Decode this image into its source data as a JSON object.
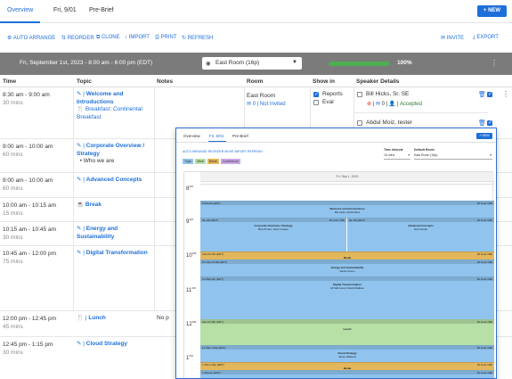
{
  "tabs": [
    "Overview",
    "Fri, 9/01",
    "Pre-Brief"
  ],
  "new_button": "+ NEW",
  "toolbar": {
    "auto_arrange": "AUTO ARRANGE",
    "reorder": "REORDER",
    "clone": "CLONE",
    "import": "IMPORT",
    "print": "PRINT",
    "refresh": "REFRESH",
    "invite": "INVITE",
    "export": "EXPORT"
  },
  "day_bar": {
    "title": "Fri, September 1st, 2023  -  8:00 am - 6:00 pm (EDT)",
    "room": "East Room (16p)",
    "progress_percent": 100,
    "progress_label": "100%"
  },
  "columns": [
    "Time",
    "Topic",
    "Notes",
    "Room",
    "Show in",
    "Speaker Details"
  ],
  "rows": [
    {
      "time": "8:30 am - 9:00 am",
      "duration": "30 mins",
      "topic": "Welcome and Introductions",
      "extra": "Breakfast: Continental Breakfast"
    },
    {
      "time": "9:00 am - 10:00 am",
      "duration": "60 mins",
      "topic": "Corporate Overview / Strategy",
      "bullet": "Who we are"
    },
    {
      "time": "9:00 am - 10:00 am",
      "duration": "60 mins",
      "topic": "Advanced Concepts"
    },
    {
      "time": "10:00 am - 10:15 am",
      "duration": "15 mins",
      "topic": "Break"
    },
    {
      "time": "10:15 am - 10:45 am",
      "duration": "30 mins",
      "topic": "Energy and Sustainability"
    },
    {
      "time": "10:45 am - 12:00 pm",
      "duration": "75 mins",
      "topic": "Digital Transformation"
    },
    {
      "time": "12:00 pm - 12:45 pm",
      "duration": "45 mins",
      "topic": "Lunch",
      "notes": "No p"
    },
    {
      "time": "12:45 pm - 1:15 pm",
      "duration": "30 mins",
      "topic": "Cloud Strategy"
    }
  ],
  "row1_details": {
    "room": "East Room",
    "room_sub": "0  |  Not Invited",
    "show_in": [
      "Reports",
      "Eval"
    ],
    "speaker1": "Bill Hicks, Sr. SE",
    "speaker1_status": "Accepted",
    "speaker1_count": "0",
    "speaker2": "Abdul Moiz, tester"
  },
  "overlay": {
    "tabs": [
      "Overview",
      "Fri, 9/01",
      "Pre-Brief"
    ],
    "new_button": "+ NEW",
    "toolbar": "AUTO ARRANGE   REORDER   MOVE   IMPORT   REFRESH",
    "time_interval_label": "Time Interval",
    "time_interval_value": "15 mins",
    "default_room_label": "Default Room",
    "default_room_value": "East Room (16p)",
    "legend": [
      "Topic",
      "Meal",
      "Break",
      "Conference"
    ],
    "date_header": "Fri, Sep 1, 2023",
    "hours": [
      "8",
      "9",
      "10",
      "11",
      "12",
      "1"
    ],
    "events": [
      {
        "tl": "8:30a-9a (EDT)",
        "tr": "Mr Host 1RE",
        "title": "Welcome and Introductions",
        "sub": "Bill Hicks, Abdul Moiz"
      },
      {
        "tl": "9a-10a (EDT)",
        "tr": "Mr Host 1RE",
        "title": "Corporate Overview / Strategy",
        "sub": "Bob Printer, Sean Gowen"
      },
      {
        "tl": "9a-10a (EDT)",
        "tr": "Mr Host 1RE",
        "title": "Advanced Concepts",
        "sub": "Dan Novak"
      },
      {
        "tl": "10a-10:15a (EDT)",
        "tr": "Mr Host 1RE",
        "title": "Break",
        "sub": ""
      },
      {
        "tl": "10:15a-10:45a (EDT)",
        "tr": "Mr Host 1RE",
        "title": "Energy and Sustainability",
        "sub": "Sarah Green"
      },
      {
        "tl": "10:45a-12p (EDT)",
        "tr": "Mr Host 1RE",
        "title": "Digital Transformation",
        "sub": "Ali Mahmood, David Malkine"
      },
      {
        "tl": "12p-12:45p (EDT)",
        "tr": "Mr Host 1RE",
        "title": "Lunch",
        "sub": ""
      },
      {
        "tl": "12:45p-1:15p (EDT)",
        "tr": "Mr Host 1RE",
        "title": "Cloud Strategy",
        "sub": "Jamie Williams"
      },
      {
        "tl": "1:15p-1:30p (EDT)",
        "tr": "Mr Host 1RE",
        "title": "Break",
        "sub": ""
      },
      {
        "tl": "1:30p-2p (EDT)",
        "tr": "Mr Host 1RE",
        "title": "",
        "sub": ""
      }
    ]
  },
  "colors": {
    "accent": "#1e6fd9",
    "topic": "#90c4ee",
    "meal": "#b6e0a6",
    "break": "#e2b75c",
    "conference": "#c9a8e6"
  }
}
